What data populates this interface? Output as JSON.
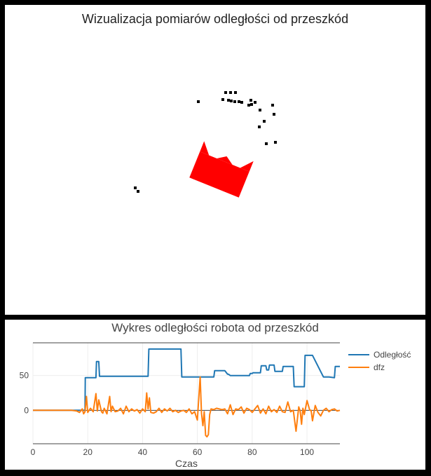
{
  "viz": {
    "title": "Wizualizacja pomiarów odległości od przeszkód",
    "obstacle_color": "#000000",
    "robot_color": "#ff0000",
    "robot_label": "robot",
    "obstacle_points": [
      [
        283,
        145
      ],
      [
        322,
        132
      ],
      [
        329,
        132
      ],
      [
        336,
        132
      ],
      [
        318,
        142
      ],
      [
        326,
        143
      ],
      [
        330,
        144
      ],
      [
        335,
        145
      ],
      [
        341,
        145
      ],
      [
        345,
        146
      ],
      [
        358,
        143
      ],
      [
        355,
        150
      ],
      [
        359,
        149
      ],
      [
        364,
        146
      ],
      [
        389,
        150
      ],
      [
        371,
        157
      ],
      [
        391,
        163
      ],
      [
        377,
        173
      ],
      [
        370,
        181
      ],
      [
        380,
        205
      ],
      [
        393,
        203
      ],
      [
        193,
        268
      ],
      [
        197,
        273
      ]
    ]
  },
  "chart_data": {
    "type": "line",
    "title": "Wykres odległości robota od przeszkód",
    "xlabel": "Czas",
    "ylabel": "",
    "xlim": [
      0,
      112
    ],
    "ylim": [
      -48,
      97
    ],
    "xticks": [
      0,
      20,
      40,
      60,
      80,
      100
    ],
    "yticks": [
      0,
      50
    ],
    "grid": true,
    "legend_position": "right",
    "series": [
      {
        "name": "Odległość",
        "color": "#1f77b4",
        "x": [
          0,
          19,
          19.1,
          23,
          23.2,
          24,
          24.3,
          30,
          35,
          42,
          42.3,
          54,
          54.3,
          60,
          65,
          66,
          66.3,
          70,
          71,
          71.3,
          72,
          72.3,
          79,
          79.3,
          80,
          80.3,
          83,
          83.3,
          85,
          85.3,
          86,
          86.3,
          88,
          88.3,
          91,
          91.3,
          94,
          95,
          95.3,
          99,
          99.3,
          102,
          106,
          108,
          110,
          110.3,
          112
        ],
        "values": [
          0,
          0,
          47,
          47,
          70,
          70,
          49,
          49,
          49,
          49,
          88,
          88,
          48,
          48,
          48,
          48,
          57,
          57,
          52,
          52,
          50,
          50,
          50,
          53,
          53,
          54,
          54,
          64,
          64,
          58,
          58,
          65,
          65,
          56,
          56,
          63,
          63,
          63,
          34,
          34,
          79,
          79,
          48,
          48,
          47,
          63,
          63
        ]
      },
      {
        "name": "dfz",
        "color": "#ff7f0e",
        "x": [
          0,
          2,
          4,
          6,
          8,
          10,
          12,
          14,
          16,
          17,
          18,
          18.5,
          19,
          19.5,
          20,
          21,
          22,
          23,
          23.5,
          24,
          25,
          25.5,
          26,
          27,
          28,
          28.5,
          29,
          30,
          31,
          32,
          33,
          34,
          35,
          36,
          37,
          38,
          39,
          40,
          41,
          41.5,
          42,
          42.5,
          43,
          44,
          45,
          46,
          47,
          48,
          49,
          50,
          51,
          52,
          53,
          54,
          55,
          56,
          57,
          58,
          59,
          60,
          61,
          61.5,
          62,
          62.5,
          63,
          63.5,
          64,
          64.5,
          65,
          66,
          67,
          68,
          69,
          70,
          71,
          72,
          73,
          74,
          75,
          76,
          77,
          78,
          79,
          80,
          81,
          82,
          83,
          84,
          85,
          86,
          87,
          88,
          89,
          90,
          91,
          92,
          93,
          94,
          95,
          96,
          97,
          97.5,
          98,
          98.5,
          99,
          100,
          101,
          101.5,
          102,
          103,
          104,
          105,
          106,
          107,
          108,
          109,
          110,
          111,
          112
        ],
        "values": [
          0,
          0,
          0,
          0,
          0,
          0,
          0,
          0,
          -1,
          -3,
          2,
          -5,
          -2,
          20,
          -3,
          3,
          -2,
          24,
          -1,
          15,
          -2,
          -4,
          3,
          -5,
          20,
          -2,
          6,
          -2,
          -1,
          3,
          -5,
          6,
          -2,
          2,
          -1,
          1,
          -4,
          2,
          -2,
          25,
          2,
          18,
          -3,
          -4,
          -2,
          3,
          -3,
          2,
          -1,
          3,
          -2,
          0,
          -3,
          -1,
          0,
          -3,
          2,
          -5,
          -2,
          -14,
          48,
          -4,
          -22,
          -2,
          -36,
          -38,
          -35,
          -6,
          2,
          1,
          3,
          2,
          1,
          2,
          -5,
          8,
          -6,
          2,
          1,
          5,
          -4,
          3,
          1,
          -3,
          2,
          7,
          -4,
          2,
          -5,
          6,
          -2,
          1,
          -3,
          6,
          -2,
          -3,
          12,
          -2,
          0,
          -30,
          5,
          -1,
          -20,
          3,
          -6,
          14,
          0,
          0,
          -15,
          7,
          -3,
          -8,
          0,
          3,
          -2,
          1,
          2,
          -1,
          0
        ]
      }
    ]
  }
}
